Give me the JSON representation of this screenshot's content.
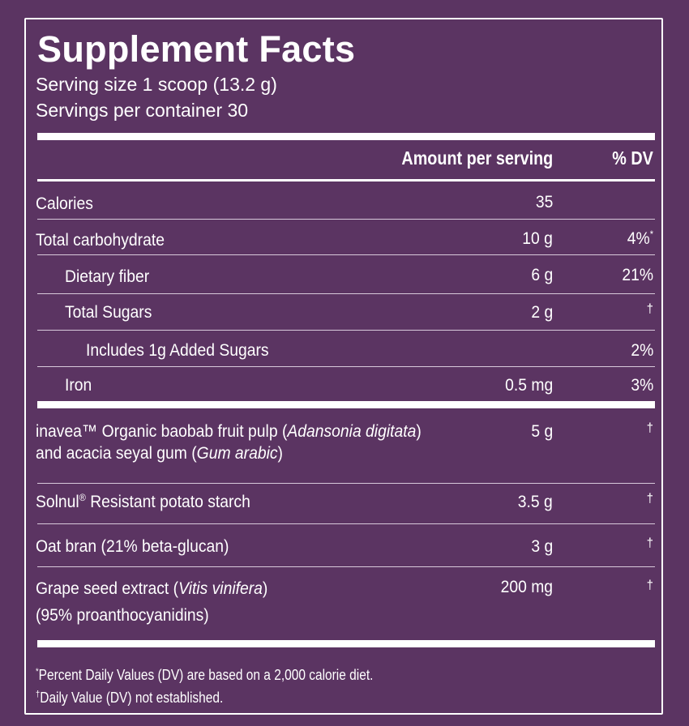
{
  "header": {
    "title": "Supplement Facts",
    "serving_size": "Serving size 1 scoop (13.2 g)",
    "servings_per_container": "Servings per container 30"
  },
  "columns": {
    "amount": "Amount per serving",
    "dv": "% DV"
  },
  "nutrients": [
    {
      "label": "Calories",
      "amount": "35",
      "dv": ""
    },
    {
      "label": "Total carbohydrate",
      "amount": "10 g",
      "dv": "4%",
      "dv_mark": "*"
    },
    {
      "label": "Dietary fiber",
      "amount": "6 g",
      "dv": "21%"
    },
    {
      "label": "Total Sugars",
      "amount": "2 g",
      "dv": "†"
    },
    {
      "label": "Includes 1g Added Sugars",
      "amount": "",
      "dv": "2%"
    },
    {
      "label": "Iron",
      "amount": "0.5 mg",
      "dv": "3%"
    }
  ],
  "ingredients": [
    {
      "name_a": "inavea™ Organic baobab fruit pulp (",
      "latin_a": "Adansonia digitata",
      "name_b": ")",
      "name_c": "and acacia seyal gum (",
      "latin_b": "Gum arabic",
      "name_d": ")",
      "amount": "5 g",
      "dv": "†"
    },
    {
      "name_a": "Solnul",
      "mark": "®",
      "name_b": " Resistant potato starch",
      "amount": "3.5 g",
      "dv": "†"
    },
    {
      "name": "Oat bran (21% beta-glucan)",
      "amount": "3 g",
      "dv": "†"
    },
    {
      "name_a": "Grape seed extract (",
      "latin": "Vitis vinifera",
      "name_b": ")",
      "name_c": "(95% proanthocyanidins)",
      "amount": "200 mg",
      "dv": "†"
    }
  ],
  "footnotes": {
    "dv_mark": "*",
    "dv_note": "Percent Daily Values (DV) are based on a 2,000 calorie diet.",
    "dagger_mark": "†",
    "dagger_note": "Daily Value (DV) not established."
  },
  "colors": {
    "background": "#5b3462",
    "text": "#ffffff"
  }
}
